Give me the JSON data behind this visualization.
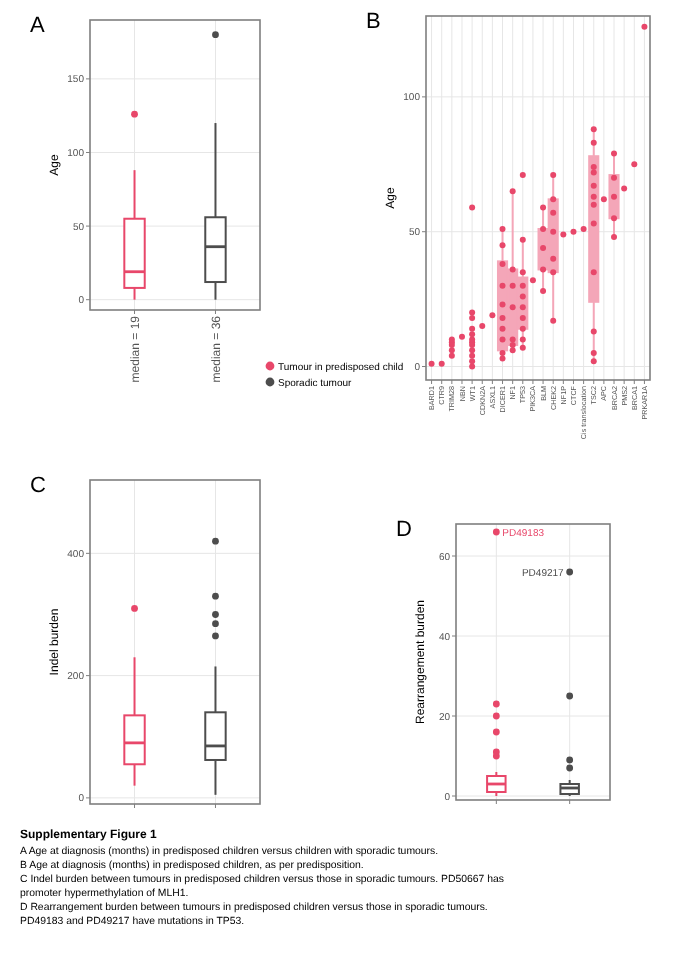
{
  "chart_data": [
    {
      "type": "box",
      "title": "A",
      "ylabel": "Age",
      "categories": [
        "median = 19",
        "median = 36"
      ],
      "ylim": [
        -7,
        190
      ],
      "yticks": [
        0,
        50,
        100,
        150
      ],
      "grid": true,
      "legend": "right",
      "series": [
        {
          "name": "Tumour in predisposed child",
          "color": "#e8476a",
          "boxes": [
            {
              "low": 0,
              "q1": 8,
              "median": 19,
              "q3": 55,
              "high": 88,
              "outliers": [
                126
              ]
            },
            null
          ]
        },
        {
          "name": "Sporadic tumour",
          "color": "#4d4d4d",
          "boxes": [
            null,
            {
              "low": 0,
              "q1": 12,
              "median": 36,
              "q3": 56,
              "high": 120,
              "outliers": [
                180
              ]
            }
          ]
        }
      ]
    },
    {
      "type": "box",
      "title": "B",
      "ylabel": "Age",
      "categories": [
        "BARD1",
        "CTR9",
        "TRIM28",
        "NBN",
        "WT1",
        "CDKN2A",
        "ASXL1",
        "DICER1",
        "NF1",
        "TP53",
        "PIK3CA",
        "BLM",
        "CHEK2",
        "NF1P",
        "CTCF",
        "Cis translocation",
        "TSC2",
        "APC",
        "BRCA2",
        "PMS2",
        "BRCA1",
        "PRKAR1A"
      ],
      "ylim": [
        -5,
        130
      ],
      "yticks": [
        0,
        50,
        100
      ],
      "grid": true,
      "series": [
        {
          "color": "#f4a6b8",
          "boxes": [
            null,
            null,
            null,
            null,
            null,
            null,
            null,
            {
              "low": 3,
              "q1": 6,
              "median": 23,
              "q3": 39,
              "high": 51
            },
            {
              "low": 5,
              "q1": 8,
              "median": 13,
              "q3": 36,
              "high": 65
            },
            {
              "low": 7,
              "q1": 14,
              "median": 22,
              "q3": 33,
              "high": 47
            },
            null,
            {
              "low": 28,
              "q1": 36,
              "median": 44,
              "q3": 51,
              "high": 59
            },
            {
              "low": 17,
              "q1": 35,
              "median": 50,
              "q3": 62,
              "high": 71
            },
            null,
            null,
            null,
            {
              "low": 2,
              "q1": 24,
              "median": 60,
              "q3": 78,
              "high": 88
            },
            null,
            {
              "low": 48,
              "q1": 55,
              "median": 63,
              "q3": 71,
              "high": 79
            },
            null,
            null,
            null
          ]
        },
        {
          "type": "scatter",
          "color": "#e8476a",
          "x": [
            "BARD1",
            "CTR9",
            "TRIM28",
            "TRIM28",
            "TRIM28",
            "TRIM28",
            "TRIM28",
            "NBN",
            "WT1",
            "WT1",
            "WT1",
            "WT1",
            "WT1",
            "WT1",
            "WT1",
            "WT1",
            "WT1",
            "WT1",
            "WT1",
            "WT1",
            "CDKN2A",
            "ASXL1",
            "DICER1",
            "DICER1",
            "DICER1",
            "DICER1",
            "DICER1",
            "DICER1",
            "DICER1",
            "DICER1",
            "DICER1",
            "DICER1",
            "NF1",
            "NF1",
            "NF1",
            "NF1",
            "NF1",
            "NF1",
            "NF1",
            "TP53",
            "TP53",
            "TP53",
            "TP53",
            "TP53",
            "TP53",
            "TP53",
            "TP53",
            "TP53",
            "TP53",
            "PIK3CA",
            "BLM",
            "BLM",
            "BLM",
            "BLM",
            "BLM",
            "CHEK2",
            "CHEK2",
            "CHEK2",
            "CHEK2",
            "CHEK2",
            "CHEK2",
            "CHEK2",
            "NF1P",
            "CTCF",
            "Cis translocation",
            "TSC2",
            "TSC2",
            "TSC2",
            "TSC2",
            "TSC2",
            "TSC2",
            "TSC2",
            "TSC2",
            "TSC2",
            "TSC2",
            "TSC2",
            "TSC2",
            "APC",
            "BRCA2",
            "BRCA2",
            "BRCA2",
            "BRCA2",
            "BRCA2",
            "PMS2",
            "BRCA1",
            "PRKAR1A"
          ],
          "values": [
            1,
            1,
            4,
            6,
            8,
            9,
            10,
            11,
            0,
            2,
            4,
            6,
            8,
            9,
            10,
            12,
            14,
            18,
            20,
            59,
            15,
            19,
            3,
            5,
            10,
            14,
            18,
            23,
            30,
            38,
            45,
            51,
            6,
            8,
            10,
            22,
            30,
            36,
            65,
            7,
            10,
            14,
            18,
            22,
            26,
            30,
            35,
            47,
            71,
            32,
            28,
            36,
            44,
            51,
            59,
            17,
            35,
            40,
            50,
            57,
            62,
            71,
            49,
            50,
            51,
            2,
            5,
            13,
            35,
            53,
            60,
            63,
            67,
            72,
            74,
            83,
            88,
            62,
            48,
            55,
            63,
            70,
            79,
            66,
            75,
            126
          ]
        }
      ]
    },
    {
      "type": "box",
      "title": "C",
      "ylabel": "Indel burden",
      "categories": [
        null,
        null
      ],
      "ylim": [
        -10,
        520
      ],
      "yticks": [
        0,
        200,
        400
      ],
      "grid": true,
      "tick_labels": "y",
      "series": [
        {
          "color": "#e8476a",
          "boxes": [
            {
              "low": 20,
              "q1": 55,
              "median": 90,
              "q3": 135,
              "high": 230,
              "outliers": [
                310
              ]
            },
            null
          ]
        },
        {
          "color": "#4d4d4d",
          "boxes": [
            null,
            {
              "low": 5,
              "q1": 62,
              "median": 85,
              "q3": 140,
              "high": 215,
              "outliers": [
                265,
                285,
                300,
                330,
                420
              ]
            }
          ]
        }
      ]
    },
    {
      "type": "box",
      "title": "D",
      "ylabel": "Rearrangement burden",
      "categories": [
        null,
        null
      ],
      "ylim": [
        -1,
        68
      ],
      "yticks": [
        0,
        20,
        40,
        60
      ],
      "grid": true,
      "tick_labels": "y",
      "annotations": [
        "PD49183",
        "PD49217"
      ],
      "series": [
        {
          "color": "#e8476a",
          "boxes": [
            {
              "low": 0,
              "q1": 1,
              "median": 3,
              "q3": 5,
              "high": 6,
              "outliers": [
                10,
                11,
                16,
                20,
                23,
                66
              ]
            },
            null
          ]
        },
        {
          "color": "#4d4d4d",
          "boxes": [
            null,
            {
              "low": 0,
              "q1": 0.5,
              "median": 2,
              "q3": 3,
              "high": 4,
              "outliers": [
                7,
                9,
                25,
                56
              ]
            }
          ]
        }
      ]
    },
    {
      "type": "other",
      "title": "Supplementary Figure 1",
      "annotations": [
        "A Age at diagnosis (months) in predisposed children versus children with sporadic tumours.",
        "B Age at diagnosis (months) in predisposed children, as per predisposition.",
        "C Indel burden between tumours in predisposed children versus those in sporadic tumours. PD50667 has",
        "promoter hypermethylation of MLH1.",
        "D Rearrangement burden between tumours in predisposed children versus those in sporadic tumours.",
        "PD49183 and PD49217 have mutations in TP53."
      ]
    }
  ]
}
